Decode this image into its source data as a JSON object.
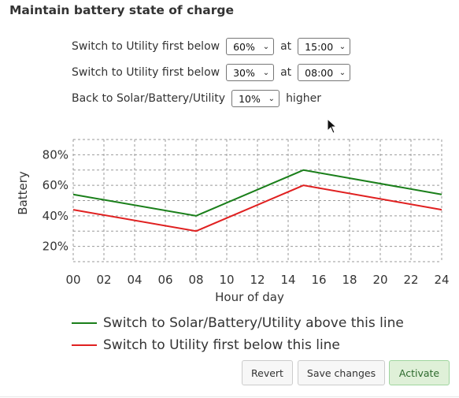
{
  "title": "Maintain battery state of charge",
  "rows": [
    {
      "label": "Switch to Utility first below",
      "value": "60%",
      "at": "at",
      "time": "15:00"
    },
    {
      "label": "Switch to Utility first below",
      "value": "30%",
      "at": "at",
      "time": "08:00"
    }
  ],
  "back_row": {
    "label": "Back to Solar/Battery/Utility",
    "value": "10%",
    "suffix": "higher"
  },
  "chart_data": {
    "type": "line",
    "xlabel": "Hour of day",
    "ylabel": "Battery",
    "x_ticks": [
      "00",
      "02",
      "04",
      "06",
      "08",
      "10",
      "12",
      "14",
      "16",
      "18",
      "20",
      "22",
      "24"
    ],
    "y_ticks": [
      "20%",
      "40%",
      "60%",
      "80%"
    ],
    "xlim": [
      0,
      24
    ],
    "ylim": [
      10,
      90
    ],
    "grid": true,
    "series": [
      {
        "name": "Switch to Solar/Battery/Utility above this line",
        "color": "#1a7f1a",
        "x": [
          0,
          8,
          15,
          24
        ],
        "y": [
          54,
          40,
          70,
          54
        ]
      },
      {
        "name": "Switch to Utility first below this line",
        "color": "#e02020",
        "x": [
          0,
          8,
          15,
          24
        ],
        "y": [
          44,
          30,
          60,
          44
        ]
      }
    ]
  },
  "buttons": {
    "revert": "Revert",
    "save": "Save changes",
    "activate": "Activate"
  }
}
